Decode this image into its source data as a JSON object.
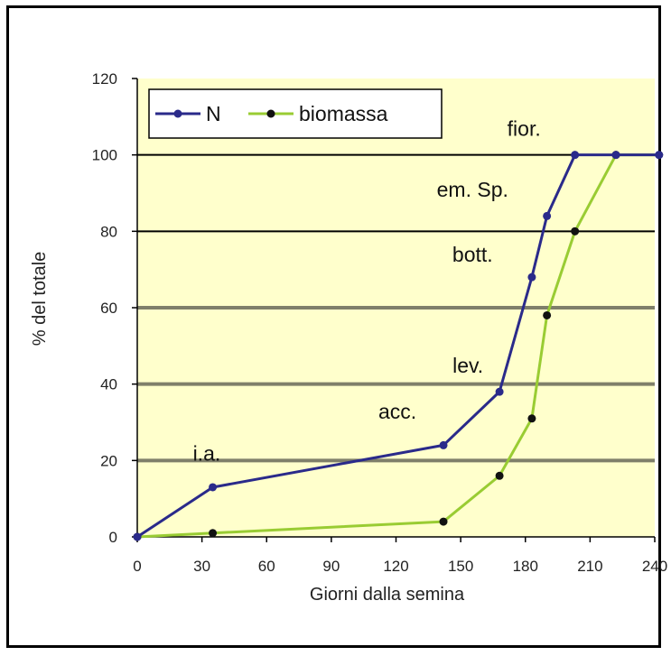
{
  "chart_data": {
    "type": "line",
    "xlabel": "Giorni dalla semina",
    "ylabel": "% del totale",
    "xlim": [
      0,
      240
    ],
    "ylim": [
      0,
      120
    ],
    "xticks": [
      "0",
      "30",
      "60",
      "90",
      "120",
      "150",
      "180",
      "210",
      "240"
    ],
    "yticks": [
      "0",
      "20",
      "40",
      "60",
      "80",
      "100",
      "120"
    ],
    "legend_position": "top-left",
    "colors": {
      "plot_bg": "#ffffcc",
      "N": "#2a2a8a",
      "biomassa": "#99cc33",
      "marker": "#111111"
    },
    "series": [
      {
        "name": "N",
        "x": [
          0,
          35,
          142,
          168,
          183,
          190,
          203,
          222,
          242
        ],
        "y": [
          0,
          13,
          24,
          38,
          68,
          84,
          100,
          100,
          100
        ]
      },
      {
        "name": "biomassa",
        "x": [
          0,
          35,
          142,
          168,
          183,
          190,
          203,
          222,
          242
        ],
        "y": [
          0,
          1,
          4,
          16,
          31,
          58,
          80,
          100,
          100
        ]
      }
    ],
    "annotations": [
      {
        "text": "i.a.",
        "x": 35,
        "y": 20
      },
      {
        "text": "acc.",
        "x": 142,
        "y": 31
      },
      {
        "text": "lev.",
        "x": 168,
        "y": 43
      },
      {
        "text": "bott.",
        "x": 183,
        "y": 72
      },
      {
        "text": "em. Sp.",
        "x": 190,
        "y": 89
      },
      {
        "text": "fior.",
        "x": 203,
        "y": 105
      }
    ]
  }
}
